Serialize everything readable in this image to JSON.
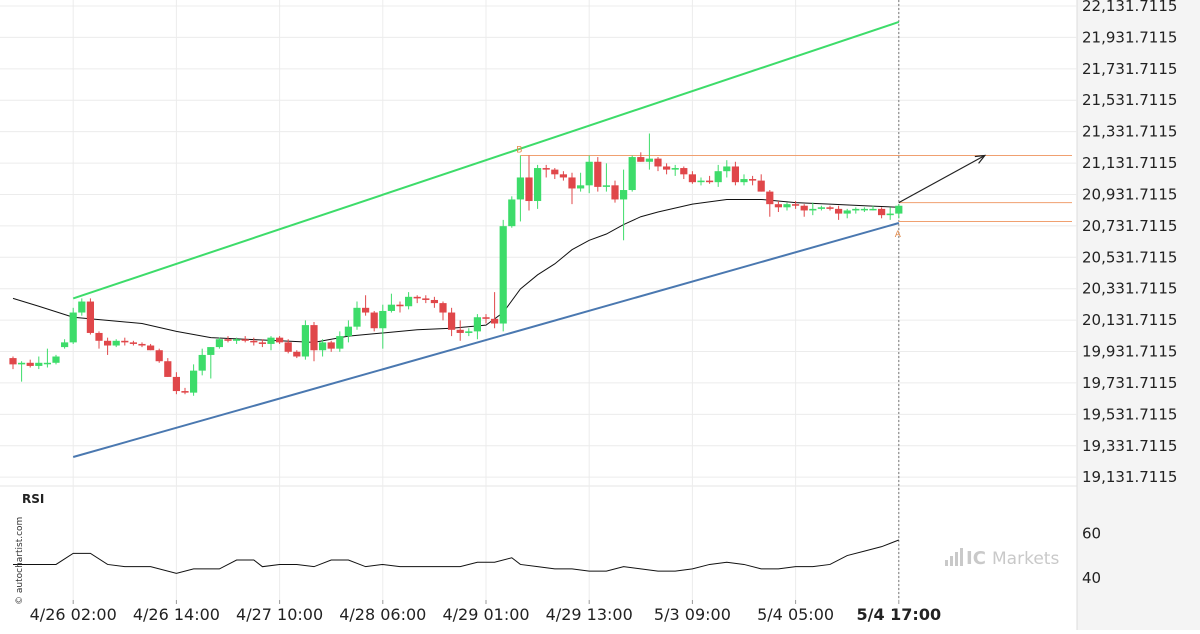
{
  "side_watermark": "© autochartist.com",
  "brand": {
    "prefix": "IC",
    "name": "Markets"
  },
  "rsi_label": "RSI",
  "colors": {
    "up": "#3ddc6a",
    "down": "#e0474a",
    "resistance": "#3ddc6a",
    "support": "#4a78b0",
    "level": "#f0a070",
    "moving_average": "#111111",
    "projection_arrow": "#222222",
    "rsi": "#111111",
    "grid": "#ececec"
  },
  "chart_data": {
    "type": "candlestick",
    "instrument_note": "",
    "y_axis": {
      "ticks": [
        "22,131.7115",
        "21,931.7115",
        "21,731.7115",
        "21,531.7115",
        "21,331.7115",
        "21,131.7115",
        "20,931.7115",
        "20,731.7115",
        "20,531.7115",
        "20,331.7115",
        "20,131.7115",
        "19,931.7115",
        "19,731.7115",
        "19,531.7115",
        "19,331.7115",
        "19,131.7115"
      ],
      "values": [
        22131.7115,
        21931.7115,
        21731.7115,
        21531.7115,
        21331.7115,
        21131.7115,
        20931.7115,
        20731.7115,
        20531.7115,
        20331.7115,
        20131.7115,
        19931.7115,
        19731.7115,
        19531.7115,
        19331.7115,
        19131.7115
      ],
      "ylim": [
        19050,
        22170
      ]
    },
    "x_axis": {
      "labels": [
        {
          "text": "4/26 02:00",
          "index": 7,
          "bold": false
        },
        {
          "text": "4/26 14:00",
          "index": 19,
          "bold": false
        },
        {
          "text": "4/27 10:00",
          "index": 31,
          "bold": false
        },
        {
          "text": "4/28 06:00",
          "index": 43,
          "bold": false
        },
        {
          "text": "4/29 01:00",
          "index": 55,
          "bold": false
        },
        {
          "text": "4/29 13:00",
          "index": 67,
          "bold": false
        },
        {
          "text": "5/3 09:00",
          "index": 79,
          "bold": false
        },
        {
          "text": "5/4 05:00",
          "index": 91,
          "bold": false
        },
        {
          "text": "5/4 17:00",
          "index": 103,
          "bold": true
        }
      ],
      "n_slots": 114,
      "latest_index": 103
    },
    "candles": [
      [
        19890,
        19900,
        19820,
        19850
      ],
      [
        19850,
        19870,
        19740,
        19860
      ],
      [
        19860,
        19880,
        19830,
        19840
      ],
      [
        19840,
        19900,
        19820,
        19860
      ],
      [
        19860,
        19950,
        19830,
        19860
      ],
      [
        19860,
        19910,
        19850,
        19900
      ],
      [
        19960,
        20010,
        19950,
        19990
      ],
      [
        19990,
        20210,
        19980,
        20180
      ],
      [
        20180,
        20270,
        20160,
        20250
      ],
      [
        20250,
        20270,
        20040,
        20050
      ],
      [
        20050,
        20060,
        19950,
        20000
      ],
      [
        20000,
        20020,
        19910,
        19970
      ],
      [
        19970,
        20010,
        19960,
        20000
      ],
      [
        20000,
        20020,
        19970,
        19990
      ],
      [
        19990,
        20000,
        19970,
        19980
      ],
      [
        19980,
        19990,
        19960,
        19970
      ],
      [
        19970,
        19980,
        19940,
        19940
      ],
      [
        19940,
        19950,
        19860,
        19870
      ],
      [
        19870,
        19890,
        19770,
        19770
      ],
      [
        19770,
        19800,
        19660,
        19680
      ],
      [
        19680,
        19700,
        19660,
        19670
      ],
      [
        19670,
        19850,
        19650,
        19810
      ],
      [
        19810,
        19950,
        19780,
        19910
      ],
      [
        19910,
        19960,
        19760,
        19960
      ],
      [
        19960,
        20020,
        19950,
        20010
      ],
      [
        20010,
        20030,
        19990,
        20000
      ],
      [
        20000,
        20020,
        19980,
        20010
      ],
      [
        20010,
        20030,
        19990,
        20000
      ],
      [
        20000,
        20020,
        19970,
        19990
      ],
      [
        19990,
        20010,
        19960,
        19980
      ],
      [
        19980,
        20030,
        19940,
        20020
      ],
      [
        20020,
        20030,
        19980,
        19990
      ],
      [
        19990,
        20010,
        19920,
        19930
      ],
      [
        19930,
        19940,
        19890,
        19900
      ],
      [
        19900,
        20130,
        19880,
        20100
      ],
      [
        20100,
        20120,
        19870,
        19940
      ],
      [
        19940,
        20010,
        19900,
        19990
      ],
      [
        19990,
        20000,
        19930,
        19950
      ],
      [
        19950,
        20060,
        19930,
        20030
      ],
      [
        20030,
        20130,
        19990,
        20090
      ],
      [
        20090,
        20250,
        20070,
        20210
      ],
      [
        20210,
        20290,
        20160,
        20180
      ],
      [
        20180,
        20190,
        20060,
        20080
      ],
      [
        20080,
        20230,
        19950,
        20190
      ],
      [
        20190,
        20300,
        20180,
        20230
      ],
      [
        20230,
        20250,
        20180,
        20220
      ],
      [
        20220,
        20310,
        20200,
        20280
      ],
      [
        20280,
        20290,
        20240,
        20270
      ],
      [
        20270,
        20290,
        20240,
        20260
      ],
      [
        20260,
        20280,
        20210,
        20240
      ],
      [
        20240,
        20250,
        20130,
        20180
      ],
      [
        20180,
        20210,
        20030,
        20070
      ],
      [
        20070,
        20130,
        20000,
        20050
      ],
      [
        20050,
        20080,
        20030,
        20060
      ],
      [
        20060,
        20170,
        20010,
        20150
      ],
      [
        20150,
        20170,
        20110,
        20140
      ],
      [
        20140,
        20310,
        20080,
        20110
      ],
      [
        20110,
        20770,
        20060,
        20730
      ],
      [
        20730,
        20920,
        20720,
        20900
      ],
      [
        20900,
        21180,
        20760,
        21040
      ],
      [
        21040,
        21180,
        20830,
        20890
      ],
      [
        20890,
        21120,
        20840,
        21100
      ],
      [
        21100,
        21120,
        21040,
        21090
      ],
      [
        21090,
        21100,
        21030,
        21060
      ],
      [
        21060,
        21080,
        21020,
        21040
      ],
      [
        21040,
        21070,
        20870,
        20970
      ],
      [
        20970,
        21070,
        20950,
        20990
      ],
      [
        20990,
        21180,
        20940,
        21140
      ],
      [
        21140,
        21170,
        20950,
        20980
      ],
      [
        20980,
        21130,
        20950,
        20990
      ],
      [
        20990,
        21020,
        20880,
        20900
      ],
      [
        20900,
        21090,
        20640,
        20960
      ],
      [
        20960,
        21180,
        20950,
        21170
      ],
      [
        21170,
        21200,
        21140,
        21140
      ],
      [
        21140,
        21320,
        21090,
        21160
      ],
      [
        21160,
        21170,
        21080,
        21110
      ],
      [
        21110,
        21130,
        21060,
        21090
      ],
      [
        21090,
        21120,
        21050,
        21100
      ],
      [
        21100,
        21110,
        21030,
        21060
      ],
      [
        21060,
        21080,
        21000,
        21010
      ],
      [
        21010,
        21040,
        20990,
        21020
      ],
      [
        21020,
        21050,
        21000,
        21010
      ],
      [
        21010,
        21120,
        20980,
        21080
      ],
      [
        21080,
        21150,
        21040,
        21110
      ],
      [
        21110,
        21140,
        20990,
        21010
      ],
      [
        21010,
        21060,
        20990,
        21030
      ],
      [
        21030,
        21050,
        20990,
        21020
      ],
      [
        21020,
        21060,
        20950,
        20950
      ],
      [
        20950,
        20960,
        20790,
        20870
      ],
      [
        20870,
        20890,
        20820,
        20850
      ],
      [
        20850,
        20880,
        20830,
        20870
      ],
      [
        20870,
        20890,
        20840,
        20860
      ],
      [
        20860,
        20870,
        20790,
        20830
      ],
      [
        20830,
        20880,
        20800,
        20840
      ],
      [
        20840,
        20860,
        20830,
        20850
      ],
      [
        20850,
        20860,
        20830,
        20840
      ],
      [
        20840,
        20860,
        20770,
        20810
      ],
      [
        20810,
        20840,
        20780,
        20830
      ],
      [
        20830,
        20850,
        20810,
        20840
      ],
      [
        20840,
        20850,
        20820,
        20840
      ],
      [
        20840,
        20860,
        20830,
        20840
      ],
      [
        20840,
        20850,
        20780,
        20800
      ],
      [
        20800,
        20850,
        20770,
        20810
      ],
      [
        20810,
        20870,
        20780,
        20860
      ]
    ],
    "moving_average": [
      [
        0,
        20270
      ],
      [
        3,
        20220
      ],
      [
        7,
        20150
      ],
      [
        11,
        20130
      ],
      [
        15,
        20110
      ],
      [
        19,
        20060
      ],
      [
        23,
        20020
      ],
      [
        27,
        20010
      ],
      [
        31,
        20000
      ],
      [
        35,
        19990
      ],
      [
        39,
        20030
      ],
      [
        43,
        20050
      ],
      [
        47,
        20070
      ],
      [
        51,
        20080
      ],
      [
        55,
        20100
      ],
      [
        57,
        20180
      ],
      [
        59,
        20330
      ],
      [
        61,
        20420
      ],
      [
        63,
        20490
      ],
      [
        65,
        20580
      ],
      [
        67,
        20640
      ],
      [
        69,
        20680
      ],
      [
        71,
        20740
      ],
      [
        73,
        20790
      ],
      [
        75,
        20820
      ],
      [
        79,
        20870
      ],
      [
        83,
        20900
      ],
      [
        87,
        20900
      ],
      [
        91,
        20880
      ],
      [
        95,
        20870
      ],
      [
        99,
        20860
      ],
      [
        103,
        20850
      ]
    ],
    "pattern": {
      "resistance_line": [
        [
          7,
          20270
        ],
        [
          103,
          22030
        ]
      ],
      "support_line": [
        [
          7,
          19260
        ],
        [
          103,
          20750
        ]
      ],
      "level_B": 21180,
      "level_entry": 20880,
      "level_A": 20760,
      "point_B": {
        "label": "B",
        "index": 59,
        "value": 21180
      },
      "point_A": {
        "label": "A",
        "index": 103,
        "value": 20750
      },
      "projection": [
        [
          103,
          20880
        ],
        [
          113,
          21180
        ]
      ]
    },
    "rsi": {
      "ticks": [
        60,
        40
      ],
      "ylim": [
        30,
        75
      ],
      "values": [
        [
          0,
          46
        ],
        [
          5,
          46
        ],
        [
          7,
          51
        ],
        [
          9,
          51
        ],
        [
          11,
          46
        ],
        [
          13,
          45
        ],
        [
          16,
          45
        ],
        [
          19,
          42
        ],
        [
          21,
          44
        ],
        [
          24,
          44
        ],
        [
          26,
          48
        ],
        [
          28,
          48
        ],
        [
          29,
          45
        ],
        [
          31,
          46
        ],
        [
          33,
          46
        ],
        [
          35,
          45
        ],
        [
          37,
          48
        ],
        [
          39,
          48
        ],
        [
          41,
          45
        ],
        [
          43,
          46
        ],
        [
          45,
          45
        ],
        [
          47,
          45
        ],
        [
          50,
          45
        ],
        [
          52,
          45
        ],
        [
          54,
          47
        ],
        [
          56,
          47
        ],
        [
          58,
          49
        ],
        [
          59,
          46
        ],
        [
          61,
          45
        ],
        [
          63,
          44
        ],
        [
          65,
          44
        ],
        [
          67,
          43
        ],
        [
          69,
          43
        ],
        [
          71,
          45
        ],
        [
          73,
          44
        ],
        [
          75,
          43
        ],
        [
          77,
          43
        ],
        [
          79,
          44
        ],
        [
          81,
          46
        ],
        [
          83,
          47
        ],
        [
          85,
          46
        ],
        [
          87,
          44
        ],
        [
          89,
          44
        ],
        [
          91,
          45
        ],
        [
          93,
          45
        ],
        [
          95,
          46
        ],
        [
          97,
          50
        ],
        [
          99,
          52
        ],
        [
          101,
          54
        ],
        [
          103,
          57
        ]
      ]
    }
  }
}
